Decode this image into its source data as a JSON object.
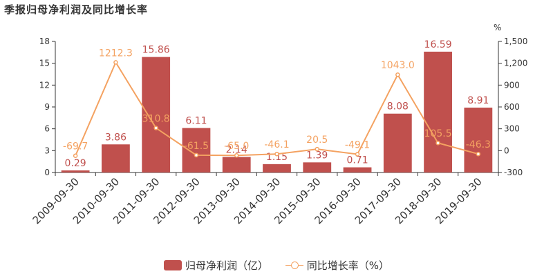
{
  "chart_data": {
    "title": "季报归母净利润及同比增长率",
    "type": "bar+line",
    "categories": [
      "2009-09-30",
      "2010-09-30",
      "2011-09-30",
      "2012-09-30",
      "2013-09-30",
      "2014-09-30",
      "2015-09-30",
      "2016-09-30",
      "2017-09-30",
      "2018-09-30",
      "2019-09-30"
    ],
    "series": [
      {
        "name": "归母净利润（亿）",
        "type": "bar",
        "axis": "left",
        "values": [
          0.29,
          3.86,
          15.86,
          6.11,
          2.14,
          1.15,
          1.39,
          0.71,
          8.08,
          16.59,
          8.91
        ],
        "labels": [
          "0.29",
          "3.86",
          "15.86",
          "6.11",
          "2.14",
          "1.15",
          "1.39",
          "0.71",
          "8.08",
          "16.59",
          "8.91"
        ]
      },
      {
        "name": "同比增长率（%）",
        "type": "line",
        "axis": "right",
        "values": [
          -69.7,
          1212.3,
          310.8,
          -61.5,
          -65.0,
          -46.1,
          20.5,
          -49.1,
          1043.0,
          105.5,
          -46.3
        ],
        "labels": [
          "-69.7",
          "1212.3",
          "310.8",
          "-61.5",
          "-65.0",
          "-46.1",
          "20.5",
          "-49.1",
          "1043.0",
          "105.5",
          "-46.3"
        ]
      }
    ],
    "y_left": {
      "min": 0,
      "max": 18,
      "ticks": [
        "0",
        "3",
        "6",
        "9",
        "12",
        "15",
        "18"
      ]
    },
    "y_right": {
      "min": -300,
      "max": 1500,
      "unit": "%",
      "ticks": [
        "-300",
        "0",
        "300",
        "600",
        "900",
        "1,200",
        "1,500"
      ]
    },
    "grid": false,
    "legend_position": "bottom",
    "colors": {
      "bar": "#c0504d",
      "line": "#f4a261",
      "bar_label": "#c0504d",
      "line_label": "#f4a261"
    }
  }
}
